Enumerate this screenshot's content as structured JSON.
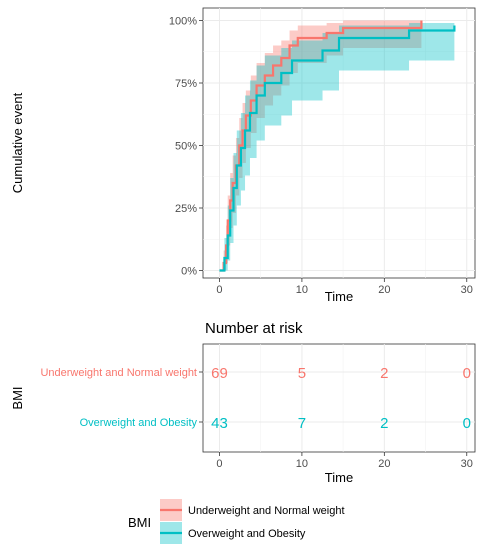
{
  "chart_data": {
    "type": "line",
    "subtype": "cumulative-incidence-step",
    "ylabel": "Cumulative event",
    "xlabel": "Time",
    "xlim": [
      -2,
      31
    ],
    "ylim": [
      -0.03,
      1.05
    ],
    "x_ticks": [
      0,
      10,
      20,
      30
    ],
    "y_ticks": [
      {
        "value": 0,
        "label": "0%"
      },
      {
        "value": 0.25,
        "label": "25%"
      },
      {
        "value": 0.5,
        "label": "50%"
      },
      {
        "value": 0.75,
        "label": "75%"
      },
      {
        "value": 1.0,
        "label": "100%"
      }
    ],
    "grid": true,
    "legend": {
      "title": "BMI",
      "position": "bottom"
    },
    "series": [
      {
        "name": "Underweight and Normal weight",
        "color": "#f8766d",
        "fill": "#f8766d",
        "steps": [
          [
            0.0,
            0.0
          ],
          [
            0.5,
            0.03
          ],
          [
            0.8,
            0.1
          ],
          [
            1.0,
            0.2
          ],
          [
            1.3,
            0.28
          ],
          [
            1.6,
            0.35
          ],
          [
            2.0,
            0.42
          ],
          [
            2.4,
            0.5
          ],
          [
            2.8,
            0.56
          ],
          [
            3.2,
            0.62
          ],
          [
            3.8,
            0.68
          ],
          [
            4.5,
            0.74
          ],
          [
            5.5,
            0.78
          ],
          [
            6.5,
            0.82
          ],
          [
            7.5,
            0.85
          ],
          [
            8.5,
            0.9
          ],
          [
            9.5,
            0.93
          ],
          [
            13.0,
            0.95
          ],
          [
            15.0,
            0.97
          ],
          [
            24.5,
            1.0
          ]
        ],
        "lower": [
          [
            0.0,
            0.0
          ],
          [
            0.5,
            0.0
          ],
          [
            0.8,
            0.03
          ],
          [
            1.0,
            0.1
          ],
          [
            1.3,
            0.17
          ],
          [
            1.6,
            0.23
          ],
          [
            2.0,
            0.3
          ],
          [
            2.4,
            0.37
          ],
          [
            2.8,
            0.43
          ],
          [
            3.2,
            0.49
          ],
          [
            3.8,
            0.55
          ],
          [
            4.5,
            0.61
          ],
          [
            5.5,
            0.66
          ],
          [
            6.5,
            0.7
          ],
          [
            7.5,
            0.74
          ],
          [
            8.5,
            0.79
          ],
          [
            9.5,
            0.83
          ],
          [
            13.0,
            0.86
          ],
          [
            15.0,
            0.89
          ],
          [
            24.5,
            0.93
          ]
        ],
        "upper": [
          [
            0.0,
            0.0
          ],
          [
            0.5,
            0.08
          ],
          [
            0.8,
            0.18
          ],
          [
            1.0,
            0.3
          ],
          [
            1.3,
            0.39
          ],
          [
            1.6,
            0.46
          ],
          [
            2.0,
            0.53
          ],
          [
            2.4,
            0.61
          ],
          [
            2.8,
            0.67
          ],
          [
            3.2,
            0.72
          ],
          [
            3.8,
            0.78
          ],
          [
            4.5,
            0.83
          ],
          [
            5.5,
            0.87
          ],
          [
            6.5,
            0.9
          ],
          [
            7.5,
            0.92
          ],
          [
            8.5,
            0.96
          ],
          [
            9.5,
            0.98
          ],
          [
            13.0,
            0.99
          ],
          [
            15.0,
            1.0
          ],
          [
            24.5,
            1.0
          ]
        ]
      },
      {
        "name": "Overweight and Obesity",
        "color": "#00bfc4",
        "fill": "#00bfc4",
        "steps": [
          [
            0.0,
            0.0
          ],
          [
            0.6,
            0.05
          ],
          [
            1.0,
            0.14
          ],
          [
            1.3,
            0.24
          ],
          [
            1.7,
            0.33
          ],
          [
            2.1,
            0.42
          ],
          [
            2.6,
            0.49
          ],
          [
            3.1,
            0.56
          ],
          [
            3.7,
            0.63
          ],
          [
            4.5,
            0.7
          ],
          [
            5.5,
            0.75
          ],
          [
            7.5,
            0.79
          ],
          [
            8.8,
            0.84
          ],
          [
            12.5,
            0.88
          ],
          [
            14.5,
            0.93
          ],
          [
            23.0,
            0.96
          ],
          [
            28.5,
            0.98
          ]
        ],
        "lower": [
          [
            0.0,
            0.0
          ],
          [
            0.6,
            0.0
          ],
          [
            1.0,
            0.04
          ],
          [
            1.3,
            0.11
          ],
          [
            1.7,
            0.18
          ],
          [
            2.1,
            0.26
          ],
          [
            2.6,
            0.32
          ],
          [
            3.1,
            0.38
          ],
          [
            3.7,
            0.45
          ],
          [
            4.5,
            0.52
          ],
          [
            5.5,
            0.58
          ],
          [
            7.5,
            0.62
          ],
          [
            8.8,
            0.68
          ],
          [
            12.5,
            0.72
          ],
          [
            14.5,
            0.8
          ],
          [
            23.0,
            0.84
          ],
          [
            28.5,
            0.84
          ]
        ],
        "upper": [
          [
            0.0,
            0.0
          ],
          [
            0.6,
            0.13
          ],
          [
            1.0,
            0.26
          ],
          [
            1.3,
            0.37
          ],
          [
            1.7,
            0.47
          ],
          [
            2.1,
            0.56
          ],
          [
            2.6,
            0.63
          ],
          [
            3.1,
            0.7
          ],
          [
            3.7,
            0.76
          ],
          [
            4.5,
            0.82
          ],
          [
            5.5,
            0.86
          ],
          [
            7.5,
            0.89
          ],
          [
            8.8,
            0.92
          ],
          [
            12.5,
            0.95
          ],
          [
            14.5,
            0.98
          ],
          [
            23.0,
            0.99
          ],
          [
            28.5,
            1.0
          ]
        ]
      }
    ]
  },
  "risk_table": {
    "title": "Number at risk",
    "ylabel": "BMI",
    "xlabel": "Time",
    "x_ticks": [
      0,
      10,
      20,
      30
    ],
    "rows": [
      {
        "label": "Underweight and Normal weight",
        "color": "#f8766d",
        "values": [
          "69",
          "5",
          "2",
          "0"
        ]
      },
      {
        "label": "Overweight and Obesity",
        "color": "#00bfc4",
        "values": [
          "43",
          "7",
          "2",
          "0"
        ]
      }
    ]
  }
}
